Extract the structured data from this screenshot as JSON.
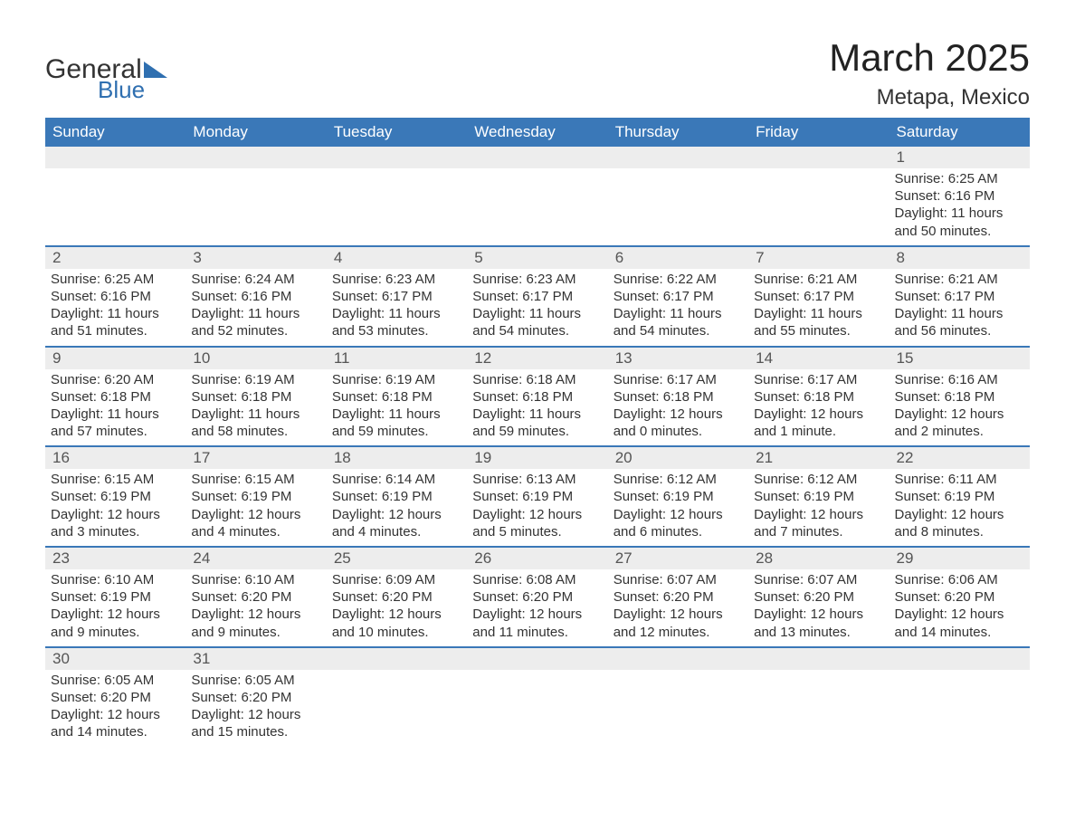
{
  "logo": {
    "word1": "General",
    "word2": "Blue",
    "accent_color": "#2f6fb0"
  },
  "title": "March 2025",
  "location": "Metapa, Mexico",
  "colors": {
    "header_bg": "#3a78b8",
    "header_text": "#ffffff",
    "daynum_bg": "#ededed",
    "daynum_text": "#555555",
    "body_text": "#333333",
    "row_border": "#3a78b8",
    "page_bg": "#ffffff"
  },
  "typography": {
    "title_fontsize": 42,
    "location_fontsize": 24,
    "header_fontsize": 17,
    "daynum_fontsize": 17,
    "body_fontsize": 15,
    "font_family": "Arial"
  },
  "layout": {
    "columns": 7,
    "rows": 6,
    "first_weekday": "Sunday"
  },
  "weekdays": [
    "Sunday",
    "Monday",
    "Tuesday",
    "Wednesday",
    "Thursday",
    "Friday",
    "Saturday"
  ],
  "weeks": [
    [
      null,
      null,
      null,
      null,
      null,
      null,
      {
        "d": "1",
        "sr": "Sunrise: 6:25 AM",
        "ss": "Sunset: 6:16 PM",
        "dl": "Daylight: 11 hours and 50 minutes."
      }
    ],
    [
      {
        "d": "2",
        "sr": "Sunrise: 6:25 AM",
        "ss": "Sunset: 6:16 PM",
        "dl": "Daylight: 11 hours and 51 minutes."
      },
      {
        "d": "3",
        "sr": "Sunrise: 6:24 AM",
        "ss": "Sunset: 6:16 PM",
        "dl": "Daylight: 11 hours and 52 minutes."
      },
      {
        "d": "4",
        "sr": "Sunrise: 6:23 AM",
        "ss": "Sunset: 6:17 PM",
        "dl": "Daylight: 11 hours and 53 minutes."
      },
      {
        "d": "5",
        "sr": "Sunrise: 6:23 AM",
        "ss": "Sunset: 6:17 PM",
        "dl": "Daylight: 11 hours and 54 minutes."
      },
      {
        "d": "6",
        "sr": "Sunrise: 6:22 AM",
        "ss": "Sunset: 6:17 PM",
        "dl": "Daylight: 11 hours and 54 minutes."
      },
      {
        "d": "7",
        "sr": "Sunrise: 6:21 AM",
        "ss": "Sunset: 6:17 PM",
        "dl": "Daylight: 11 hours and 55 minutes."
      },
      {
        "d": "8",
        "sr": "Sunrise: 6:21 AM",
        "ss": "Sunset: 6:17 PM",
        "dl": "Daylight: 11 hours and 56 minutes."
      }
    ],
    [
      {
        "d": "9",
        "sr": "Sunrise: 6:20 AM",
        "ss": "Sunset: 6:18 PM",
        "dl": "Daylight: 11 hours and 57 minutes."
      },
      {
        "d": "10",
        "sr": "Sunrise: 6:19 AM",
        "ss": "Sunset: 6:18 PM",
        "dl": "Daylight: 11 hours and 58 minutes."
      },
      {
        "d": "11",
        "sr": "Sunrise: 6:19 AM",
        "ss": "Sunset: 6:18 PM",
        "dl": "Daylight: 11 hours and 59 minutes."
      },
      {
        "d": "12",
        "sr": "Sunrise: 6:18 AM",
        "ss": "Sunset: 6:18 PM",
        "dl": "Daylight: 11 hours and 59 minutes."
      },
      {
        "d": "13",
        "sr": "Sunrise: 6:17 AM",
        "ss": "Sunset: 6:18 PM",
        "dl": "Daylight: 12 hours and 0 minutes."
      },
      {
        "d": "14",
        "sr": "Sunrise: 6:17 AM",
        "ss": "Sunset: 6:18 PM",
        "dl": "Daylight: 12 hours and 1 minute."
      },
      {
        "d": "15",
        "sr": "Sunrise: 6:16 AM",
        "ss": "Sunset: 6:18 PM",
        "dl": "Daylight: 12 hours and 2 minutes."
      }
    ],
    [
      {
        "d": "16",
        "sr": "Sunrise: 6:15 AM",
        "ss": "Sunset: 6:19 PM",
        "dl": "Daylight: 12 hours and 3 minutes."
      },
      {
        "d": "17",
        "sr": "Sunrise: 6:15 AM",
        "ss": "Sunset: 6:19 PM",
        "dl": "Daylight: 12 hours and 4 minutes."
      },
      {
        "d": "18",
        "sr": "Sunrise: 6:14 AM",
        "ss": "Sunset: 6:19 PM",
        "dl": "Daylight: 12 hours and 4 minutes."
      },
      {
        "d": "19",
        "sr": "Sunrise: 6:13 AM",
        "ss": "Sunset: 6:19 PM",
        "dl": "Daylight: 12 hours and 5 minutes."
      },
      {
        "d": "20",
        "sr": "Sunrise: 6:12 AM",
        "ss": "Sunset: 6:19 PM",
        "dl": "Daylight: 12 hours and 6 minutes."
      },
      {
        "d": "21",
        "sr": "Sunrise: 6:12 AM",
        "ss": "Sunset: 6:19 PM",
        "dl": "Daylight: 12 hours and 7 minutes."
      },
      {
        "d": "22",
        "sr": "Sunrise: 6:11 AM",
        "ss": "Sunset: 6:19 PM",
        "dl": "Daylight: 12 hours and 8 minutes."
      }
    ],
    [
      {
        "d": "23",
        "sr": "Sunrise: 6:10 AM",
        "ss": "Sunset: 6:19 PM",
        "dl": "Daylight: 12 hours and 9 minutes."
      },
      {
        "d": "24",
        "sr": "Sunrise: 6:10 AM",
        "ss": "Sunset: 6:20 PM",
        "dl": "Daylight: 12 hours and 9 minutes."
      },
      {
        "d": "25",
        "sr": "Sunrise: 6:09 AM",
        "ss": "Sunset: 6:20 PM",
        "dl": "Daylight: 12 hours and 10 minutes."
      },
      {
        "d": "26",
        "sr": "Sunrise: 6:08 AM",
        "ss": "Sunset: 6:20 PM",
        "dl": "Daylight: 12 hours and 11 minutes."
      },
      {
        "d": "27",
        "sr": "Sunrise: 6:07 AM",
        "ss": "Sunset: 6:20 PM",
        "dl": "Daylight: 12 hours and 12 minutes."
      },
      {
        "d": "28",
        "sr": "Sunrise: 6:07 AM",
        "ss": "Sunset: 6:20 PM",
        "dl": "Daylight: 12 hours and 13 minutes."
      },
      {
        "d": "29",
        "sr": "Sunrise: 6:06 AM",
        "ss": "Sunset: 6:20 PM",
        "dl": "Daylight: 12 hours and 14 minutes."
      }
    ],
    [
      {
        "d": "30",
        "sr": "Sunrise: 6:05 AM",
        "ss": "Sunset: 6:20 PM",
        "dl": "Daylight: 12 hours and 14 minutes."
      },
      {
        "d": "31",
        "sr": "Sunrise: 6:05 AM",
        "ss": "Sunset: 6:20 PM",
        "dl": "Daylight: 12 hours and 15 minutes."
      },
      null,
      null,
      null,
      null,
      null
    ]
  ]
}
